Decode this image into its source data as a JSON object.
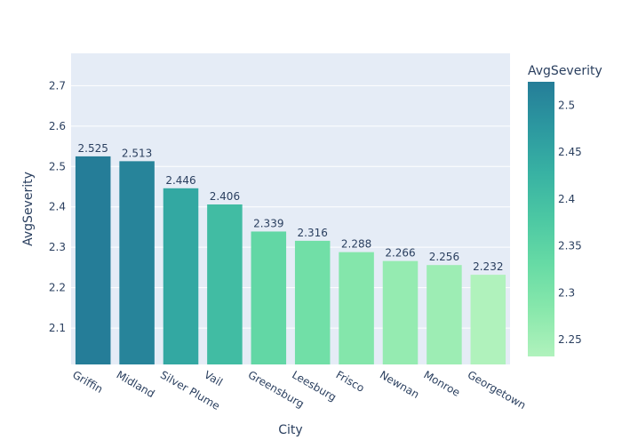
{
  "chart_data": {
    "type": "bar",
    "categories": [
      "Griffin",
      "Midland",
      "Silver Plume",
      "Vail",
      "Greensburg",
      "Leesburg",
      "Frisco",
      "Newnan",
      "Monroe",
      "Georgetown"
    ],
    "values": [
      2.525,
      2.513,
      2.446,
      2.406,
      2.339,
      2.316,
      2.288,
      2.266,
      2.256,
      2.232
    ],
    "data_labels": [
      "2.525",
      "2.513",
      "2.446",
      "2.406",
      "2.339",
      "2.316",
      "2.288",
      "2.266",
      "2.256",
      "2.232"
    ],
    "xlabel": "City",
    "ylabel": "AvgSeverity",
    "ylim": [
      2.01,
      2.78
    ],
    "yticks": [
      2.1,
      2.2,
      2.3,
      2.4,
      2.5,
      2.6,
      2.7
    ],
    "ytick_labels": [
      "2.1",
      "2.2",
      "2.3",
      "2.4",
      "2.5",
      "2.6",
      "2.7"
    ],
    "grid": true,
    "colorbar": {
      "title": "AvgSeverity",
      "range": [
        2.232,
        2.525
      ],
      "ticks": [
        2.25,
        2.3,
        2.35,
        2.4,
        2.45,
        2.5
      ],
      "tick_labels": [
        "2.25",
        "2.3",
        "2.35",
        "2.4",
        "2.45",
        "2.5"
      ],
      "colorscale": [
        "#b0f2bc",
        "#89e8ac",
        "#67dba5",
        "#4cc8a3",
        "#38b2a3",
        "#2c98a0",
        "#257d98"
      ]
    },
    "colors": {
      "plot_bg": "#e5ecf6",
      "grid": "#ffffff",
      "text": "#2a3f5f"
    }
  }
}
